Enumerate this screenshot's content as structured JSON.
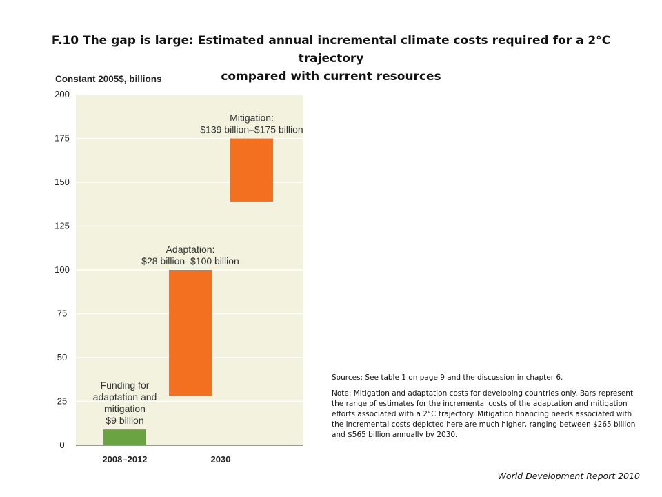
{
  "slide": {
    "title_line1": "F.10 The gap is large: Estimated annual incremental climate costs required for a 2°C trajectory",
    "title_line2": "compared with current resources"
  },
  "notes": {
    "sources": "Sources: See table 1 on page 9 and the discussion in chapter 6.",
    "note": "Note: Mitigation and adaptation costs for developing countries only. Bars represent the range of estimates for the incremental costs of the adaptation and mitigation efforts associated with a 2°C trajectory. Mitigation financing needs associated with the incremental costs depicted here are much higher, ranging between $265 billion and $565 billion annually by 2030."
  },
  "footer": {
    "source": "World Development Report 2010"
  },
  "chart_data": {
    "type": "bar",
    "ylabel": "Constant 2005$, billions",
    "ylim": [
      0,
      200
    ],
    "yticks": [
      0,
      25,
      50,
      75,
      100,
      125,
      150,
      175,
      200
    ],
    "categories": [
      "2008–2012",
      "2030"
    ],
    "grid": true,
    "background_color": "#f2f2df",
    "bars": [
      {
        "category": "2008–2012",
        "low": 0,
        "high": 9,
        "color": "#6aa341",
        "slot": 0,
        "label_lines": [
          "Funding for",
          "adaptation and",
          "mitigation",
          "$9 billion"
        ]
      },
      {
        "category": "2030",
        "low": 28,
        "high": 100,
        "color": "#f37021",
        "slot": 1,
        "label_lines": [
          "Adaptation:",
          "$28 billion–$100 billion"
        ]
      },
      {
        "category": "2030",
        "low": 139,
        "high": 175,
        "color": "#f37021",
        "slot": 2,
        "label_lines": [
          "Mitigation:",
          "$139 billion–$175 billion"
        ]
      }
    ]
  }
}
